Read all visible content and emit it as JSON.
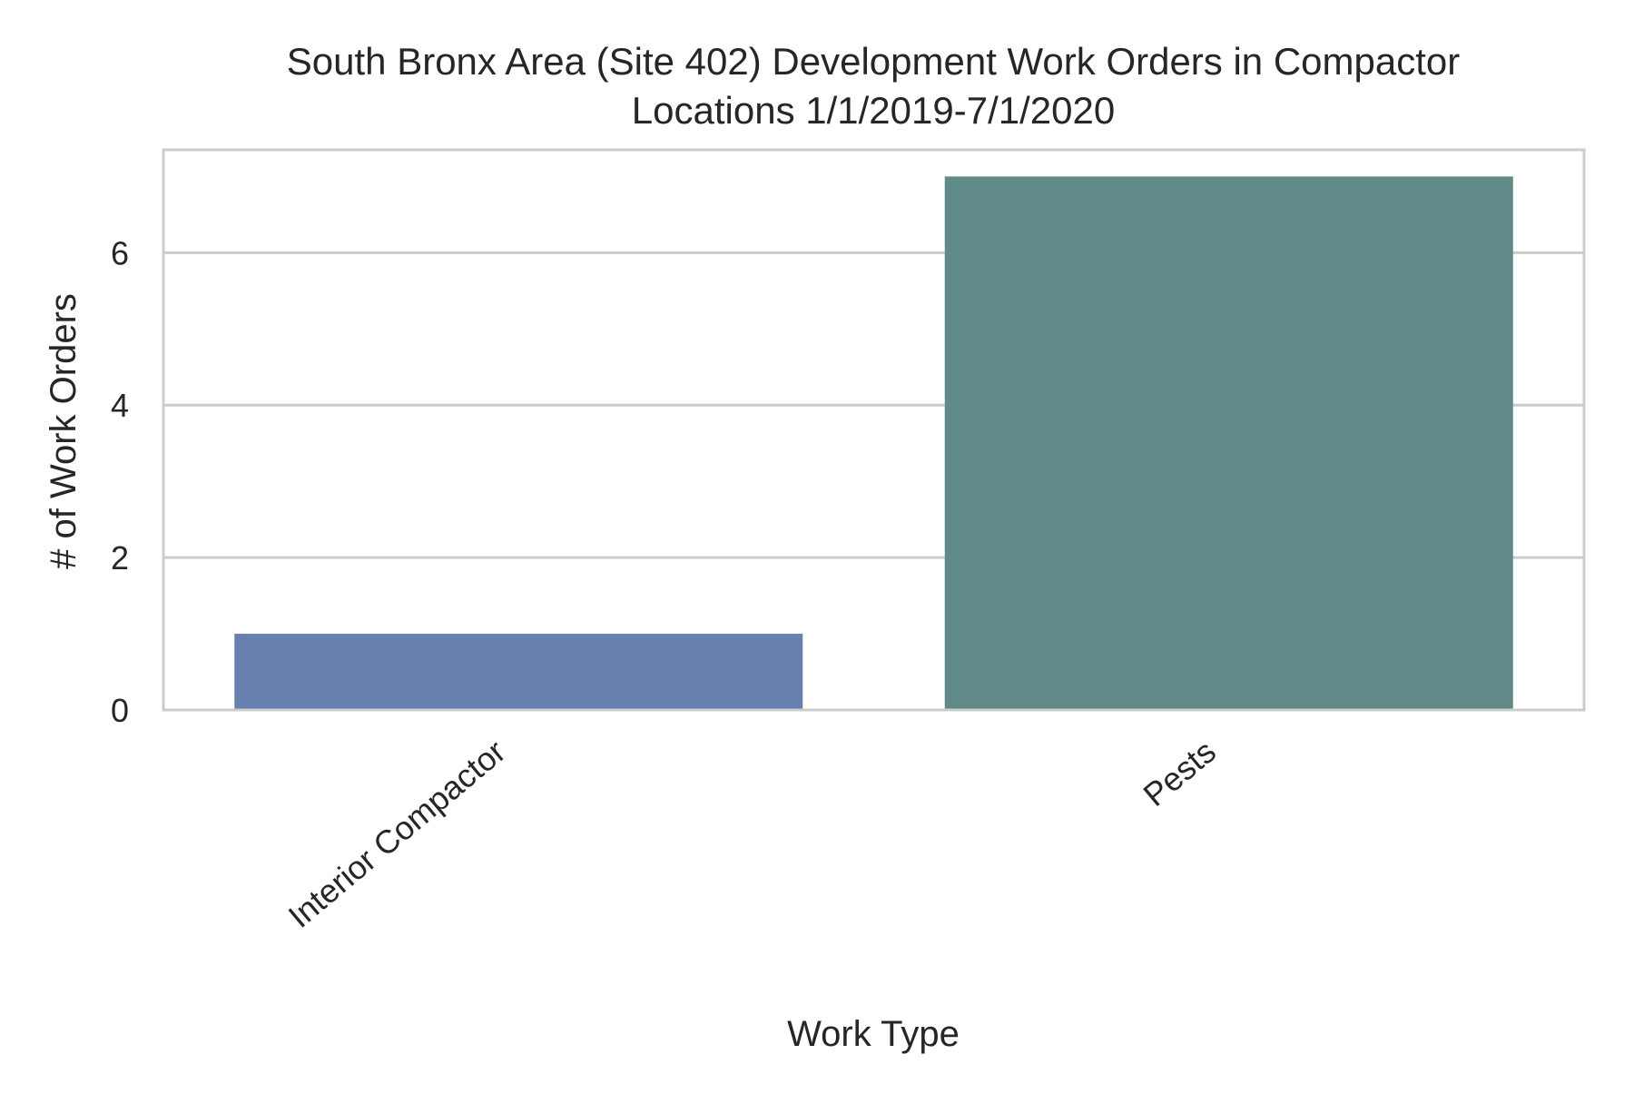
{
  "chart_data": {
    "type": "bar",
    "title_lines": [
      "South Bronx Area (Site 402) Development Work Orders in Compactor",
      "Locations 1/1/2019-7/1/2020"
    ],
    "xlabel": "Work Type",
    "ylabel": "# of Work Orders",
    "categories": [
      "Interior Compactor",
      "Pests"
    ],
    "values": [
      1,
      7
    ],
    "colors": [
      "#6780b0",
      "#5f8a88"
    ],
    "ylim": [
      0,
      7.35
    ],
    "yticks": [
      0,
      2,
      4,
      6
    ],
    "grid": true,
    "frame_color": "#cccccc",
    "grid_color": "#cccccc",
    "legend": "none"
  }
}
